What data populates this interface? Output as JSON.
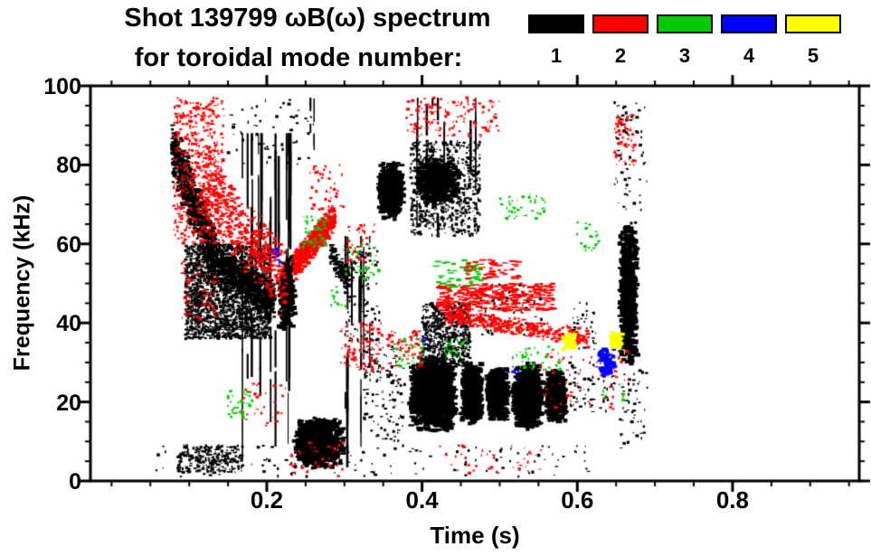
{
  "title_line1": "Shot 139799 ωB(ω) spectrum",
  "title_line2": "for toroidal mode number:",
  "legend": {
    "items": [
      {
        "label": "1",
        "color": "#000000"
      },
      {
        "label": "2",
        "color": "#ff0000"
      },
      {
        "label": "3",
        "color": "#00cc00"
      },
      {
        "label": "4",
        "color": "#0000ff"
      },
      {
        "label": "5",
        "color": "#ffff00"
      }
    ]
  },
  "axes": {
    "x": {
      "label": "Time (s)",
      "min": -0.0272,
      "max": 0.9632,
      "minor_step": 0.05,
      "major_ticks": [
        0.2,
        0.4,
        0.6,
        0.8
      ],
      "labeled_ticks": [
        {
          "v": 0.2,
          "label": "0.2"
        },
        {
          "v": 0.4,
          "label": "0.4"
        },
        {
          "v": 0.6,
          "label": "0.6"
        },
        {
          "v": 0.8,
          "label": "0.8"
        }
      ]
    },
    "y": {
      "label": "Frequency (kHz)",
      "min": 0,
      "max": 100,
      "minor_step": 5,
      "major_ticks": [
        0,
        20,
        40,
        60,
        80,
        100
      ],
      "labeled_ticks": [
        {
          "v": 0,
          "label": "0"
        },
        {
          "v": 20,
          "label": "20"
        },
        {
          "v": 40,
          "label": "40"
        },
        {
          "v": 60,
          "label": "60"
        },
        {
          "v": 80,
          "label": "80"
        },
        {
          "v": 100,
          "label": "100"
        }
      ]
    }
  },
  "colors": {
    "background": "#ffffff",
    "frame": "#000000"
  },
  "chart_data": {
    "type": "scatter",
    "title": "Shot 139799 ωB(ω) spectrum for toroidal mode number 1-5",
    "xlabel": "Time (s)",
    "ylabel": "Frequency (kHz)",
    "xlim": [
      0,
      0.96
    ],
    "ylim": [
      0,
      100
    ],
    "grid": false,
    "legend_position": "top-right",
    "modes": [
      {
        "n": 1,
        "color": "#000000"
      },
      {
        "n": 2,
        "color": "#ff0000"
      },
      {
        "n": 3,
        "color": "#00cc00"
      },
      {
        "n": 4,
        "color": "#0000ff"
      },
      {
        "n": 5,
        "color": "#ffff00"
      }
    ],
    "clusters": [
      {
        "m": 1,
        "s": "chirp",
        "t": [
          0.078,
          0.135
        ],
        "fa": 84,
        "fb": 56,
        "th": 9,
        "n": 900
      },
      {
        "m": 1,
        "s": "cloud",
        "t": [
          0.095,
          0.205
        ],
        "f": [
          36,
          60
        ],
        "n": 2200
      },
      {
        "m": 1,
        "s": "chirp",
        "t": [
          0.135,
          0.21
        ],
        "fa": 55,
        "fb": 45,
        "th": 6,
        "n": 600
      },
      {
        "m": 1,
        "s": "vstreaks",
        "t": [
          0.163,
          0.235
        ],
        "f": [
          0,
          88
        ],
        "n": 18
      },
      {
        "m": 1,
        "s": "cloud",
        "t": [
          0.15,
          0.26
        ],
        "f": [
          80,
          97
        ],
        "n": 60
      },
      {
        "m": 1,
        "s": "blob",
        "t": [
          0.215,
          0.237
        ],
        "f": [
          38,
          58
        ],
        "n": 250
      },
      {
        "m": 1,
        "s": "blob",
        "t": [
          0.235,
          0.3
        ],
        "f": [
          3,
          16
        ],
        "n": 900
      },
      {
        "m": 1,
        "s": "vstreaks",
        "t": [
          0.295,
          0.34
        ],
        "f": [
          2,
          62
        ],
        "n": 9
      },
      {
        "m": 1,
        "s": "cloud",
        "t": [
          0.3,
          0.345
        ],
        "f": [
          35,
          60
        ],
        "n": 120
      },
      {
        "m": 1,
        "s": "blob",
        "t": [
          0.343,
          0.378
        ],
        "f": [
          66,
          81
        ],
        "n": 550
      },
      {
        "m": 1,
        "s": "cloud",
        "t": [
          0.385,
          0.475
        ],
        "f": [
          62,
          86
        ],
        "n": 700
      },
      {
        "m": 1,
        "s": "blob",
        "t": [
          0.39,
          0.45
        ],
        "f": [
          70,
          82
        ],
        "n": 500
      },
      {
        "m": 1,
        "s": "vstreaks",
        "t": [
          0.39,
          0.47
        ],
        "f": [
          55,
          97
        ],
        "n": 8
      },
      {
        "m": 1,
        "s": "blob",
        "t": [
          0.383,
          0.445
        ],
        "f": [
          12,
          32
        ],
        "n": 1500
      },
      {
        "m": 1,
        "s": "blob",
        "t": [
          0.45,
          0.478
        ],
        "f": [
          14,
          30
        ],
        "n": 700
      },
      {
        "m": 1,
        "s": "blob",
        "t": [
          0.483,
          0.512
        ],
        "f": [
          15,
          29
        ],
        "n": 700
      },
      {
        "m": 1,
        "s": "blob",
        "t": [
          0.516,
          0.556
        ],
        "f": [
          13,
          30
        ],
        "n": 900
      },
      {
        "m": 1,
        "s": "blob",
        "t": [
          0.558,
          0.586
        ],
        "f": [
          15,
          28
        ],
        "n": 600
      },
      {
        "m": 1,
        "s": "cloud",
        "t": [
          0.4,
          0.462
        ],
        "f": [
          29,
          45
        ],
        "n": 600
      },
      {
        "m": 1,
        "s": "blob",
        "t": [
          0.654,
          0.678
        ],
        "f": [
          28,
          66
        ],
        "n": 700
      },
      {
        "m": 1,
        "s": "cloud",
        "t": [
          0.648,
          0.69
        ],
        "f": [
          68,
          96
        ],
        "n": 70
      },
      {
        "m": 1,
        "s": "cloud",
        "t": [
          0.655,
          0.69
        ],
        "f": [
          8,
          28
        ],
        "n": 50
      },
      {
        "m": 1,
        "s": "cloud",
        "t": [
          0.05,
          0.62
        ],
        "f": [
          1,
          9
        ],
        "n": 130
      },
      {
        "m": 1,
        "s": "cloud",
        "t": [
          0.085,
          0.17
        ],
        "f": [
          2,
          9
        ],
        "n": 260
      },
      {
        "m": 1,
        "s": "cloud",
        "t": [
          0.59,
          0.648
        ],
        "f": [
          17,
          30
        ],
        "n": 70
      },
      {
        "m": 1,
        "s": "cloud",
        "t": [
          0.47,
          0.56
        ],
        "f": [
          37,
          50
        ],
        "n": 90
      },
      {
        "m": 1,
        "s": "chirp",
        "t": [
          0.282,
          0.307
        ],
        "fa": 58,
        "fb": 50,
        "th": 4,
        "n": 120
      },
      {
        "m": 1,
        "s": "cloud",
        "t": [
          0.325,
          0.378
        ],
        "f": [
          10,
          34
        ],
        "n": 130
      },
      {
        "m": 1,
        "s": "cloud",
        "t": [
          0.59,
          0.625
        ],
        "f": [
          33,
          46
        ],
        "n": 40
      },
      {
        "m": 1,
        "s": "vstreaks",
        "t": [
          0.253,
          0.262
        ],
        "f": [
          80,
          97
        ],
        "n": 2
      },
      {
        "m": 2,
        "s": "cloud",
        "t": [
          0.08,
          0.145
        ],
        "f": [
          60,
          97
        ],
        "n": 500
      },
      {
        "m": 2,
        "s": "chirp",
        "t": [
          0.12,
          0.225
        ],
        "fa": 75,
        "fb": 50,
        "th": 10,
        "n": 450
      },
      {
        "m": 2,
        "s": "chirp",
        "t": [
          0.235,
          0.288
        ],
        "fa": 54,
        "fb": 67,
        "th": 4,
        "n": 700
      },
      {
        "m": 2,
        "s": "cloud",
        "t": [
          0.295,
          0.35
        ],
        "f": [
          28,
          40
        ],
        "n": 90
      },
      {
        "m": 2,
        "s": "cloud",
        "t": [
          0.38,
          0.5
        ],
        "f": [
          87,
          97
        ],
        "n": 140
      },
      {
        "m": 2,
        "s": "dash",
        "t": [
          0.42,
          0.57
        ],
        "f": [
          43,
          50
        ],
        "n": 320
      },
      {
        "m": 2,
        "s": "chirp",
        "t": [
          0.43,
          0.615
        ],
        "fa": 42,
        "fb": 36,
        "th": 2.5,
        "n": 340
      },
      {
        "m": 2,
        "s": "cloud",
        "t": [
          0.55,
          0.67
        ],
        "f": [
          18,
          33
        ],
        "n": 60
      },
      {
        "m": 2,
        "s": "cloud",
        "t": [
          0.648,
          0.675
        ],
        "f": [
          80,
          93
        ],
        "n": 60
      },
      {
        "m": 2,
        "s": "cloud",
        "t": [
          0.165,
          0.225
        ],
        "f": [
          14,
          26
        ],
        "n": 35
      },
      {
        "m": 2,
        "s": "cloud",
        "t": [
          0.23,
          0.3
        ],
        "f": [
          1,
          10
        ],
        "n": 35
      },
      {
        "m": 2,
        "s": "cloud",
        "t": [
          0.355,
          0.4
        ],
        "f": [
          29,
          38
        ],
        "n": 60
      },
      {
        "m": 2,
        "s": "dash",
        "t": [
          0.455,
          0.525
        ],
        "f": [
          51,
          56
        ],
        "n": 60
      },
      {
        "m": 2,
        "s": "cloud",
        "t": [
          0.42,
          0.56
        ],
        "f": [
          2,
          9
        ],
        "n": 40
      },
      {
        "m": 2,
        "s": "cloud",
        "t": [
          0.09,
          0.135
        ],
        "f": [
          40,
          56
        ],
        "n": 60
      },
      {
        "m": 2,
        "s": "cloud",
        "t": [
          0.255,
          0.3
        ],
        "f": [
          68,
          80
        ],
        "n": 40
      },
      {
        "m": 2,
        "s": "cloud",
        "t": [
          0.3,
          0.34
        ],
        "f": [
          55,
          65
        ],
        "n": 40
      },
      {
        "m": 3,
        "s": "cloud",
        "t": [
          0.148,
          0.182
        ],
        "f": [
          16,
          23
        ],
        "n": 40
      },
      {
        "m": 3,
        "s": "cloud",
        "t": [
          0.245,
          0.278
        ],
        "f": [
          59,
          67
        ],
        "n": 50
      },
      {
        "m": 3,
        "s": "cloud",
        "t": [
          0.298,
          0.345
        ],
        "f": [
          51,
          60
        ],
        "n": 35
      },
      {
        "m": 3,
        "s": "dash",
        "t": [
          0.415,
          0.48
        ],
        "f": [
          49,
          56
        ],
        "n": 45
      },
      {
        "m": 3,
        "s": "cloud",
        "t": [
          0.5,
          0.568
        ],
        "f": [
          66,
          73
        ],
        "n": 40
      },
      {
        "m": 3,
        "s": "cloud",
        "t": [
          0.515,
          0.578
        ],
        "f": [
          28,
          34
        ],
        "n": 35
      },
      {
        "m": 3,
        "s": "cloud",
        "t": [
          0.598,
          0.628
        ],
        "f": [
          57,
          66
        ],
        "n": 20
      },
      {
        "m": 3,
        "s": "cloud",
        "t": [
          0.36,
          0.405
        ],
        "f": [
          29,
          36
        ],
        "n": 30
      },
      {
        "m": 3,
        "s": "cloud",
        "t": [
          0.43,
          0.458
        ],
        "f": [
          31,
          36
        ],
        "n": 22
      },
      {
        "m": 3,
        "s": "cloud",
        "t": [
          0.28,
          0.305
        ],
        "f": [
          44,
          50
        ],
        "n": 12
      },
      {
        "m": 3,
        "s": "cloud",
        "t": [
          0.63,
          0.66
        ],
        "f": [
          20,
          26
        ],
        "n": 10
      },
      {
        "m": 4,
        "s": "cloud",
        "t": [
          0.205,
          0.22
        ],
        "f": [
          55,
          59
        ],
        "n": 12
      },
      {
        "m": 4,
        "s": "blob",
        "t": [
          0.627,
          0.648
        ],
        "f": [
          26,
          34
        ],
        "n": 60
      },
      {
        "m": 4,
        "s": "cloud",
        "t": [
          0.508,
          0.525
        ],
        "f": [
          26,
          30
        ],
        "n": 8
      },
      {
        "m": 4,
        "s": "cloud",
        "t": [
          0.39,
          0.405
        ],
        "f": [
          33,
          37
        ],
        "n": 6
      },
      {
        "m": 5,
        "s": "blob",
        "t": [
          0.582,
          0.6
        ],
        "f": [
          33,
          38
        ],
        "n": 50
      },
      {
        "m": 5,
        "s": "blob",
        "t": [
          0.642,
          0.66
        ],
        "f": [
          33,
          38
        ],
        "n": 45
      }
    ]
  }
}
